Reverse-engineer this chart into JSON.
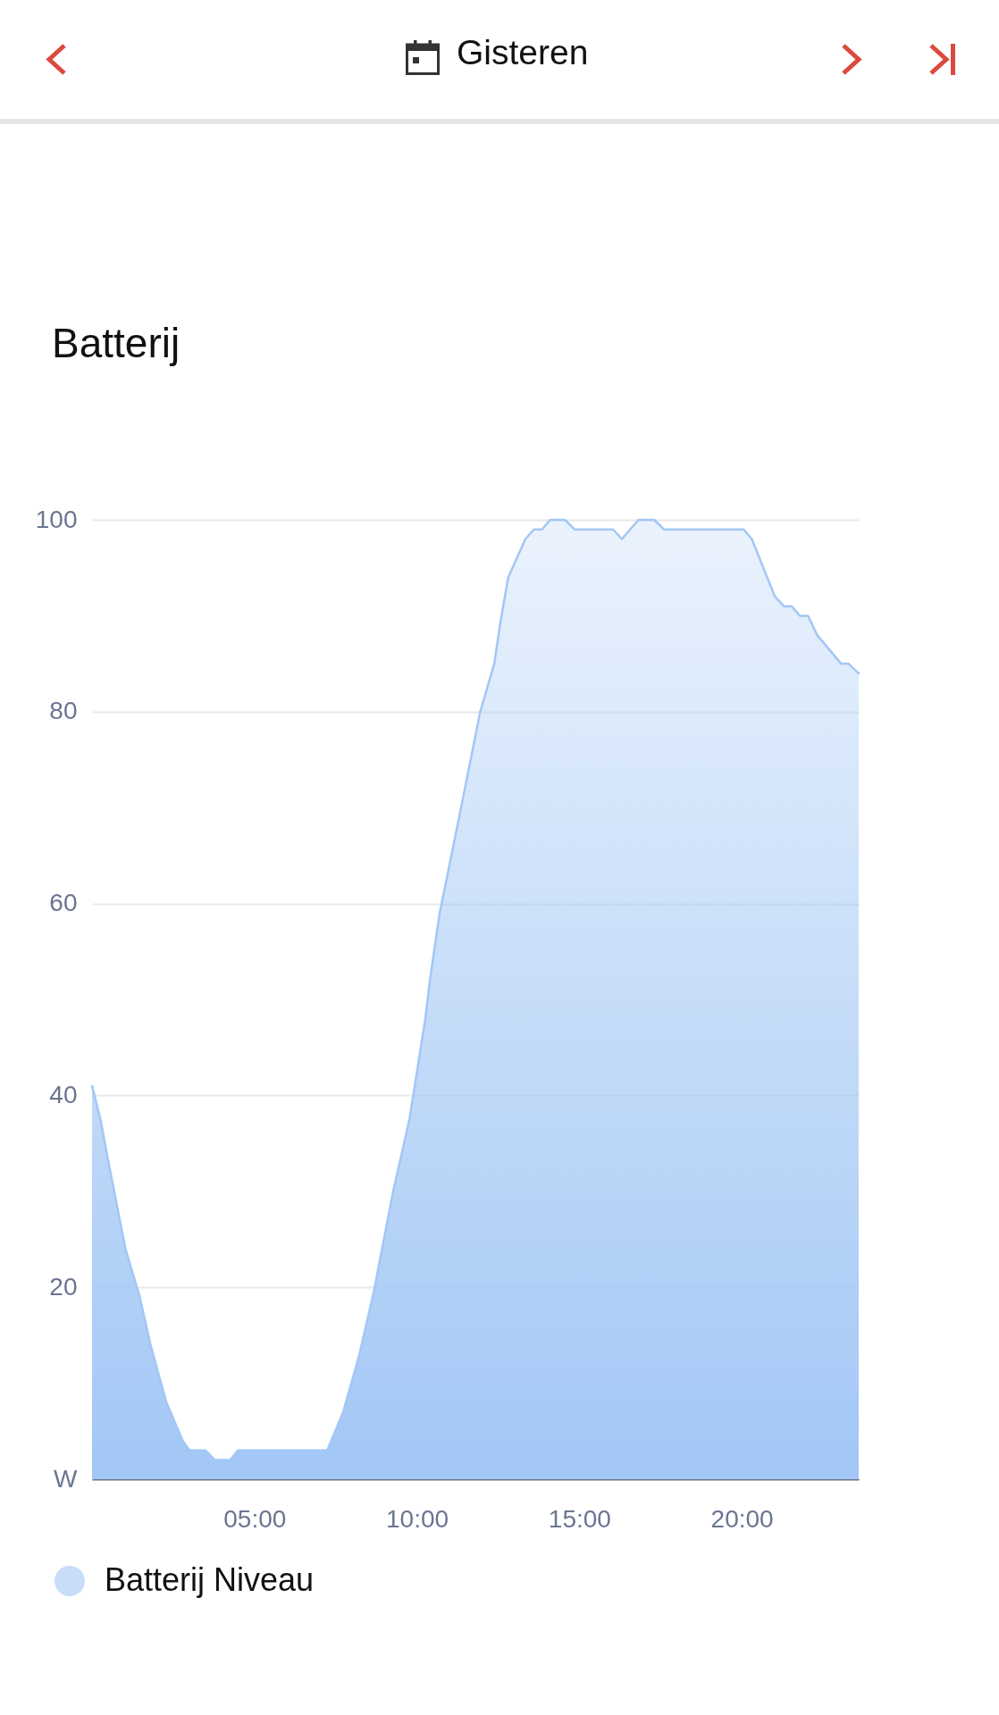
{
  "chart_data": {
    "type": "area",
    "title": "Batterij",
    "annotations": [
      "Gisteren"
    ],
    "x": [
      0,
      0.26,
      0.48,
      1.03,
      1.47,
      1.8,
      2.29,
      2.79,
      3.0,
      3.5,
      3.78,
      4.25,
      4.49,
      7.24,
      7.73,
      8.23,
      8.67,
      9.27,
      9.77,
      10.26,
      10.4,
      10.7,
      11.3,
      11.95,
      12.38,
      12.58,
      12.81,
      13.34,
      13.6,
      13.85,
      14.1,
      14.56,
      14.85,
      16.04,
      16.31,
      16.82,
      17.31,
      17.6,
      20.06,
      20.31,
      21.02,
      21.3,
      21.53,
      21.79,
      22.04,
      22.32,
      23.06,
      23.29,
      23.6
    ],
    "series": [
      {
        "name": "Batterij Niveau",
        "color": "#a2c7f5",
        "values": [
          41,
          37.5,
          33.5,
          24,
          19,
          14,
          8,
          4,
          3,
          3,
          2,
          2,
          3,
          3,
          7,
          13,
          19.5,
          30,
          37.5,
          48,
          52,
          59,
          69,
          80,
          85,
          89.5,
          94,
          98,
          99,
          99,
          100,
          100,
          99,
          99,
          98,
          100,
          100,
          99,
          99,
          98,
          92,
          91,
          91,
          90,
          90,
          88,
          85,
          85,
          84
        ]
      }
    ],
    "xlim": [
      0,
      23.6
    ],
    "xticks": [
      {
        "value": 5,
        "label": "05:00"
      },
      {
        "value": 10,
        "label": "10:00"
      },
      {
        "value": 15,
        "label": "15:00"
      },
      {
        "value": 20,
        "label": "20:00"
      }
    ],
    "ylim": [
      0,
      100
    ],
    "yticks": [
      {
        "value": 0,
        "label": "W"
      },
      20,
      40,
      60,
      80,
      100
    ],
    "grid": "y",
    "legend": "bottom"
  }
}
